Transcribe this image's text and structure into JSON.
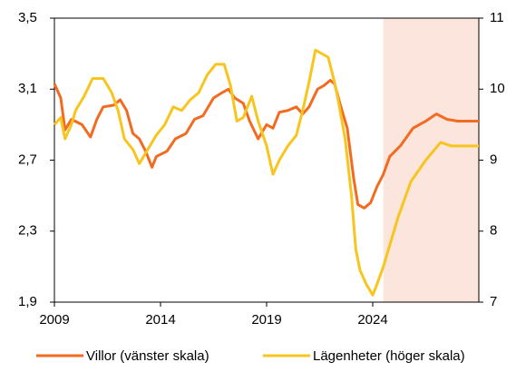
{
  "chart_data": {
    "type": "line",
    "xlim": [
      2009,
      2029
    ],
    "xticks": [
      2009,
      2014,
      2019,
      2024
    ],
    "ylim": [
      1.9,
      3.5
    ],
    "yticks": [
      {
        "value": 1.9,
        "label": "1,9"
      },
      {
        "value": 2.3,
        "label": "2,3"
      },
      {
        "value": 2.7,
        "label": "2,7"
      },
      {
        "value": 3.1,
        "label": "3,1"
      },
      {
        "value": 3.5,
        "label": "3,5"
      }
    ],
    "y2lim": [
      7,
      11
    ],
    "y2ticks": [
      7,
      8,
      9,
      10,
      11
    ],
    "shaded_region": [
      2024.5,
      2029
    ],
    "shaded_color": "#fce5dc",
    "series": [
      {
        "name": "Villor (vänster skala)",
        "color": "#f26b21",
        "axis": "y",
        "x": [
          2009.0,
          2009.3,
          2009.5,
          2009.8,
          2010.3,
          2010.7,
          2011.0,
          2011.3,
          2011.8,
          2012.1,
          2012.4,
          2012.7,
          2013.0,
          2013.3,
          2013.6,
          2013.8,
          2014.3,
          2014.7,
          2015.2,
          2015.6,
          2016.0,
          2016.5,
          2016.9,
          2017.2,
          2017.5,
          2017.9,
          2018.2,
          2018.6,
          2019.0,
          2019.3,
          2019.6,
          2020.0,
          2020.4,
          2020.7,
          2021.0,
          2021.4,
          2021.7,
          2022.0,
          2022.2,
          2022.5,
          2022.8,
          2023.1,
          2023.3,
          2023.6,
          2023.9,
          2024.2,
          2024.5,
          2024.8,
          2025.3,
          2025.9,
          2026.5,
          2027.0,
          2027.5,
          2028.0,
          2029.0
        ],
        "values": [
          3.13,
          3.05,
          2.87,
          2.93,
          2.9,
          2.83,
          2.93,
          3.0,
          3.01,
          3.04,
          2.98,
          2.85,
          2.82,
          2.75,
          2.66,
          2.72,
          2.75,
          2.82,
          2.85,
          2.93,
          2.95,
          3.05,
          3.08,
          3.1,
          3.05,
          3.02,
          2.92,
          2.82,
          2.9,
          2.88,
          2.97,
          2.98,
          3.0,
          2.96,
          3.0,
          3.1,
          3.12,
          3.15,
          3.13,
          3.0,
          2.88,
          2.6,
          2.45,
          2.43,
          2.46,
          2.55,
          2.62,
          2.72,
          2.78,
          2.88,
          2.92,
          2.96,
          2.93,
          2.92,
          2.92
        ]
      },
      {
        "name": "Lägenheter (höger skala)",
        "color": "#f7c51e",
        "axis": "y2",
        "x": [
          2009.0,
          2009.3,
          2009.5,
          2009.8,
          2010.0,
          2010.4,
          2010.8,
          2011.3,
          2011.7,
          2012.0,
          2012.3,
          2012.7,
          2013.0,
          2013.4,
          2013.8,
          2014.2,
          2014.6,
          2015.0,
          2015.4,
          2015.8,
          2016.2,
          2016.6,
          2017.0,
          2017.3,
          2017.6,
          2017.9,
          2018.3,
          2018.6,
          2019.0,
          2019.3,
          2019.6,
          2020.0,
          2020.4,
          2020.7,
          2021.0,
          2021.3,
          2021.6,
          2021.9,
          2022.2,
          2022.4,
          2022.7,
          2023.0,
          2023.2,
          2023.4,
          2023.7,
          2024.0,
          2024.2,
          2024.5,
          2024.8,
          2025.2,
          2025.8,
          2026.5,
          2027.2,
          2027.7,
          2028.0,
          2029.0
        ],
        "values": [
          9.5,
          9.6,
          9.3,
          9.5,
          9.7,
          9.9,
          10.15,
          10.15,
          9.95,
          9.7,
          9.3,
          9.15,
          8.95,
          9.15,
          9.35,
          9.5,
          9.75,
          9.7,
          9.85,
          9.95,
          10.2,
          10.35,
          10.35,
          10.05,
          9.55,
          9.6,
          9.9,
          9.55,
          9.2,
          8.8,
          9.0,
          9.2,
          9.35,
          9.7,
          10.1,
          10.55,
          10.5,
          10.45,
          10.1,
          9.8,
          9.3,
          8.5,
          7.75,
          7.45,
          7.25,
          7.1,
          7.25,
          7.5,
          7.8,
          8.2,
          8.7,
          9.0,
          9.25,
          9.2,
          9.2,
          9.2
        ]
      }
    ]
  }
}
